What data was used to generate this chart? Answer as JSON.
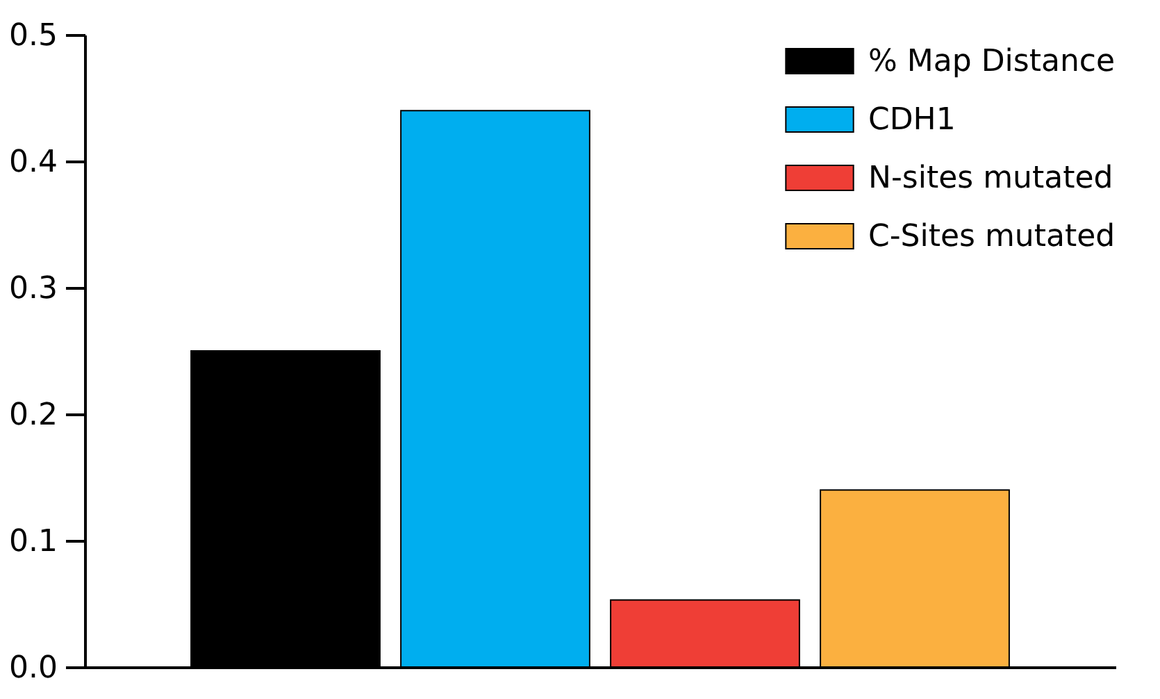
{
  "chart_data": {
    "type": "bar",
    "categories": [
      null
    ],
    "series": [
      {
        "name": "% Map Distance",
        "color": "#000000",
        "values": [
          0.25
        ]
      },
      {
        "name": "CDH1",
        "color": "#00aeef",
        "values": [
          0.44
        ]
      },
      {
        "name": "N-sites mutated",
        "color": "#ef3e36",
        "values": [
          0.053
        ]
      },
      {
        "name": "C-Sites mutated",
        "color": "#fbb040",
        "values": [
          0.14
        ]
      }
    ],
    "ylim": [
      0,
      0.5
    ],
    "yticks": [
      {
        "value": 0,
        "label": "0.0"
      },
      {
        "value": 0.1,
        "label": "0.1"
      },
      {
        "value": 0.2,
        "label": "0.2"
      },
      {
        "value": 0.3,
        "label": "0.3"
      },
      {
        "value": 0.4,
        "label": "0.4"
      },
      {
        "value": 0.5,
        "label": "0.5"
      }
    ],
    "legend": "top right",
    "tick_labels": "y"
  }
}
